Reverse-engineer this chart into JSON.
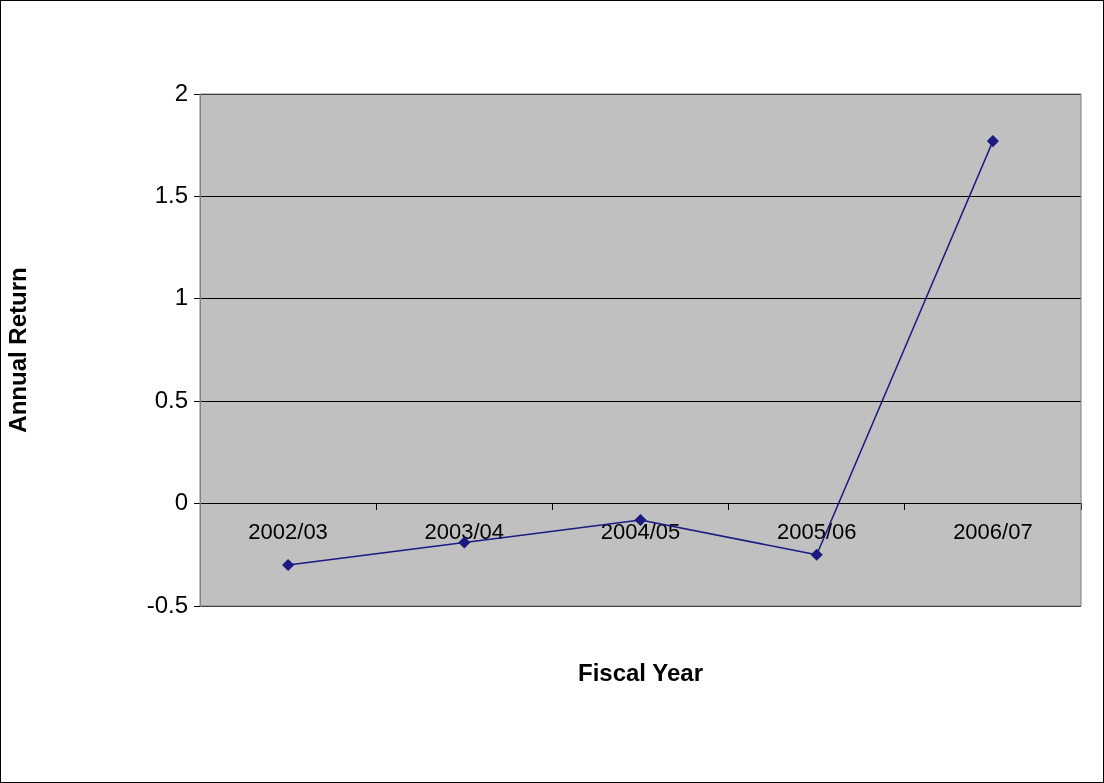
{
  "chart_data": {
    "type": "line",
    "xlabel": "Fiscal Year",
    "ylabel": "Annual Return",
    "categories": [
      "2002/03",
      "2003/04",
      "2004/05",
      "2005/06",
      "2006/07"
    ],
    "series": [
      {
        "color": "#1a1a80",
        "values": [
          -0.3,
          -0.19,
          -0.08,
          -0.25,
          1.77
        ]
      }
    ],
    "ylim": [
      -0.5,
      2
    ],
    "yticks": [
      -0.5,
      0,
      0.5,
      1,
      1.5,
      2
    ],
    "grid": "y",
    "legend": false,
    "marker": "diamond",
    "line_style": "solid"
  }
}
